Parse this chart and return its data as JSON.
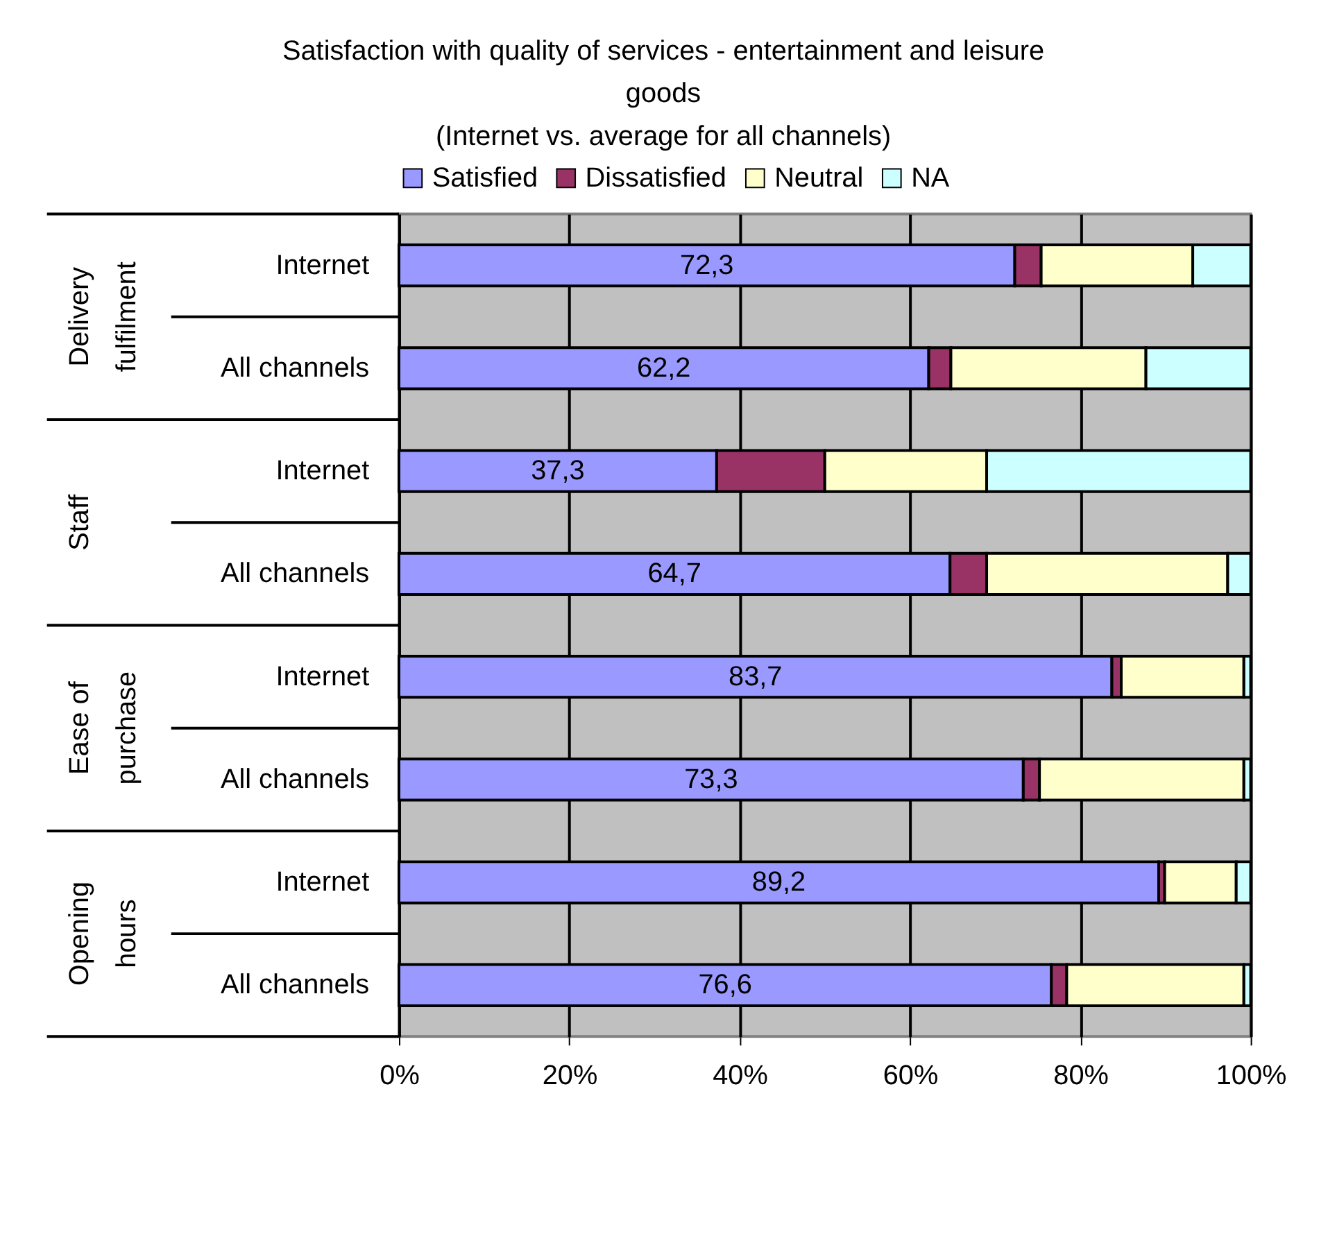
{
  "chart_data": {
    "type": "bar",
    "orientation": "horizontal",
    "stacked": true,
    "title": "Satisfaction with quality of services - entertainment and leisure goods",
    "subtitle": "(Internet vs. average for all channels)",
    "categories": [
      "Internet",
      "All channels",
      "Internet",
      "All channels",
      "Internet",
      "All channels",
      "Internet",
      "All channels"
    ],
    "annotations": [
      "Delivery fulfilment",
      "Staff",
      "Ease of purchase",
      "Opening hours"
    ],
    "series": [
      {
        "name": "Satisfied",
        "color": "#9999ff",
        "values": [
          72.3,
          62.2,
          37.3,
          64.7,
          83.7,
          73.3,
          89.2,
          76.6
        ],
        "value_labels": [
          "72,3",
          "62,2",
          "37,3",
          "64,7",
          "83,7",
          "73,3",
          "89,2",
          "76,6"
        ]
      },
      {
        "name": "Dissatisfied",
        "color": "#993366",
        "values": [
          3.1,
          2.6,
          12.7,
          4.3,
          1.1,
          1.9,
          0.7,
          1.8
        ]
      },
      {
        "name": "Neutral",
        "color": "#ffffcc",
        "values": [
          17.8,
          22.9,
          19.0,
          28.3,
          14.4,
          24.0,
          8.4,
          20.8
        ]
      },
      {
        "name": "NA",
        "color": "#ccffff",
        "values": [
          6.8,
          12.3,
          31.0,
          2.7,
          0.8,
          0.8,
          1.7,
          0.8
        ]
      }
    ],
    "xlim": [
      0,
      100
    ],
    "xticks": [
      {
        "value": 0,
        "label": "0%"
      },
      {
        "value": 20,
        "label": "20%"
      },
      {
        "value": 40,
        "label": "40%"
      },
      {
        "value": 60,
        "label": "60%"
      },
      {
        "value": 80,
        "label": "80%"
      },
      {
        "value": 100,
        "label": "100%"
      }
    ],
    "grid": "x",
    "legend": "top"
  }
}
